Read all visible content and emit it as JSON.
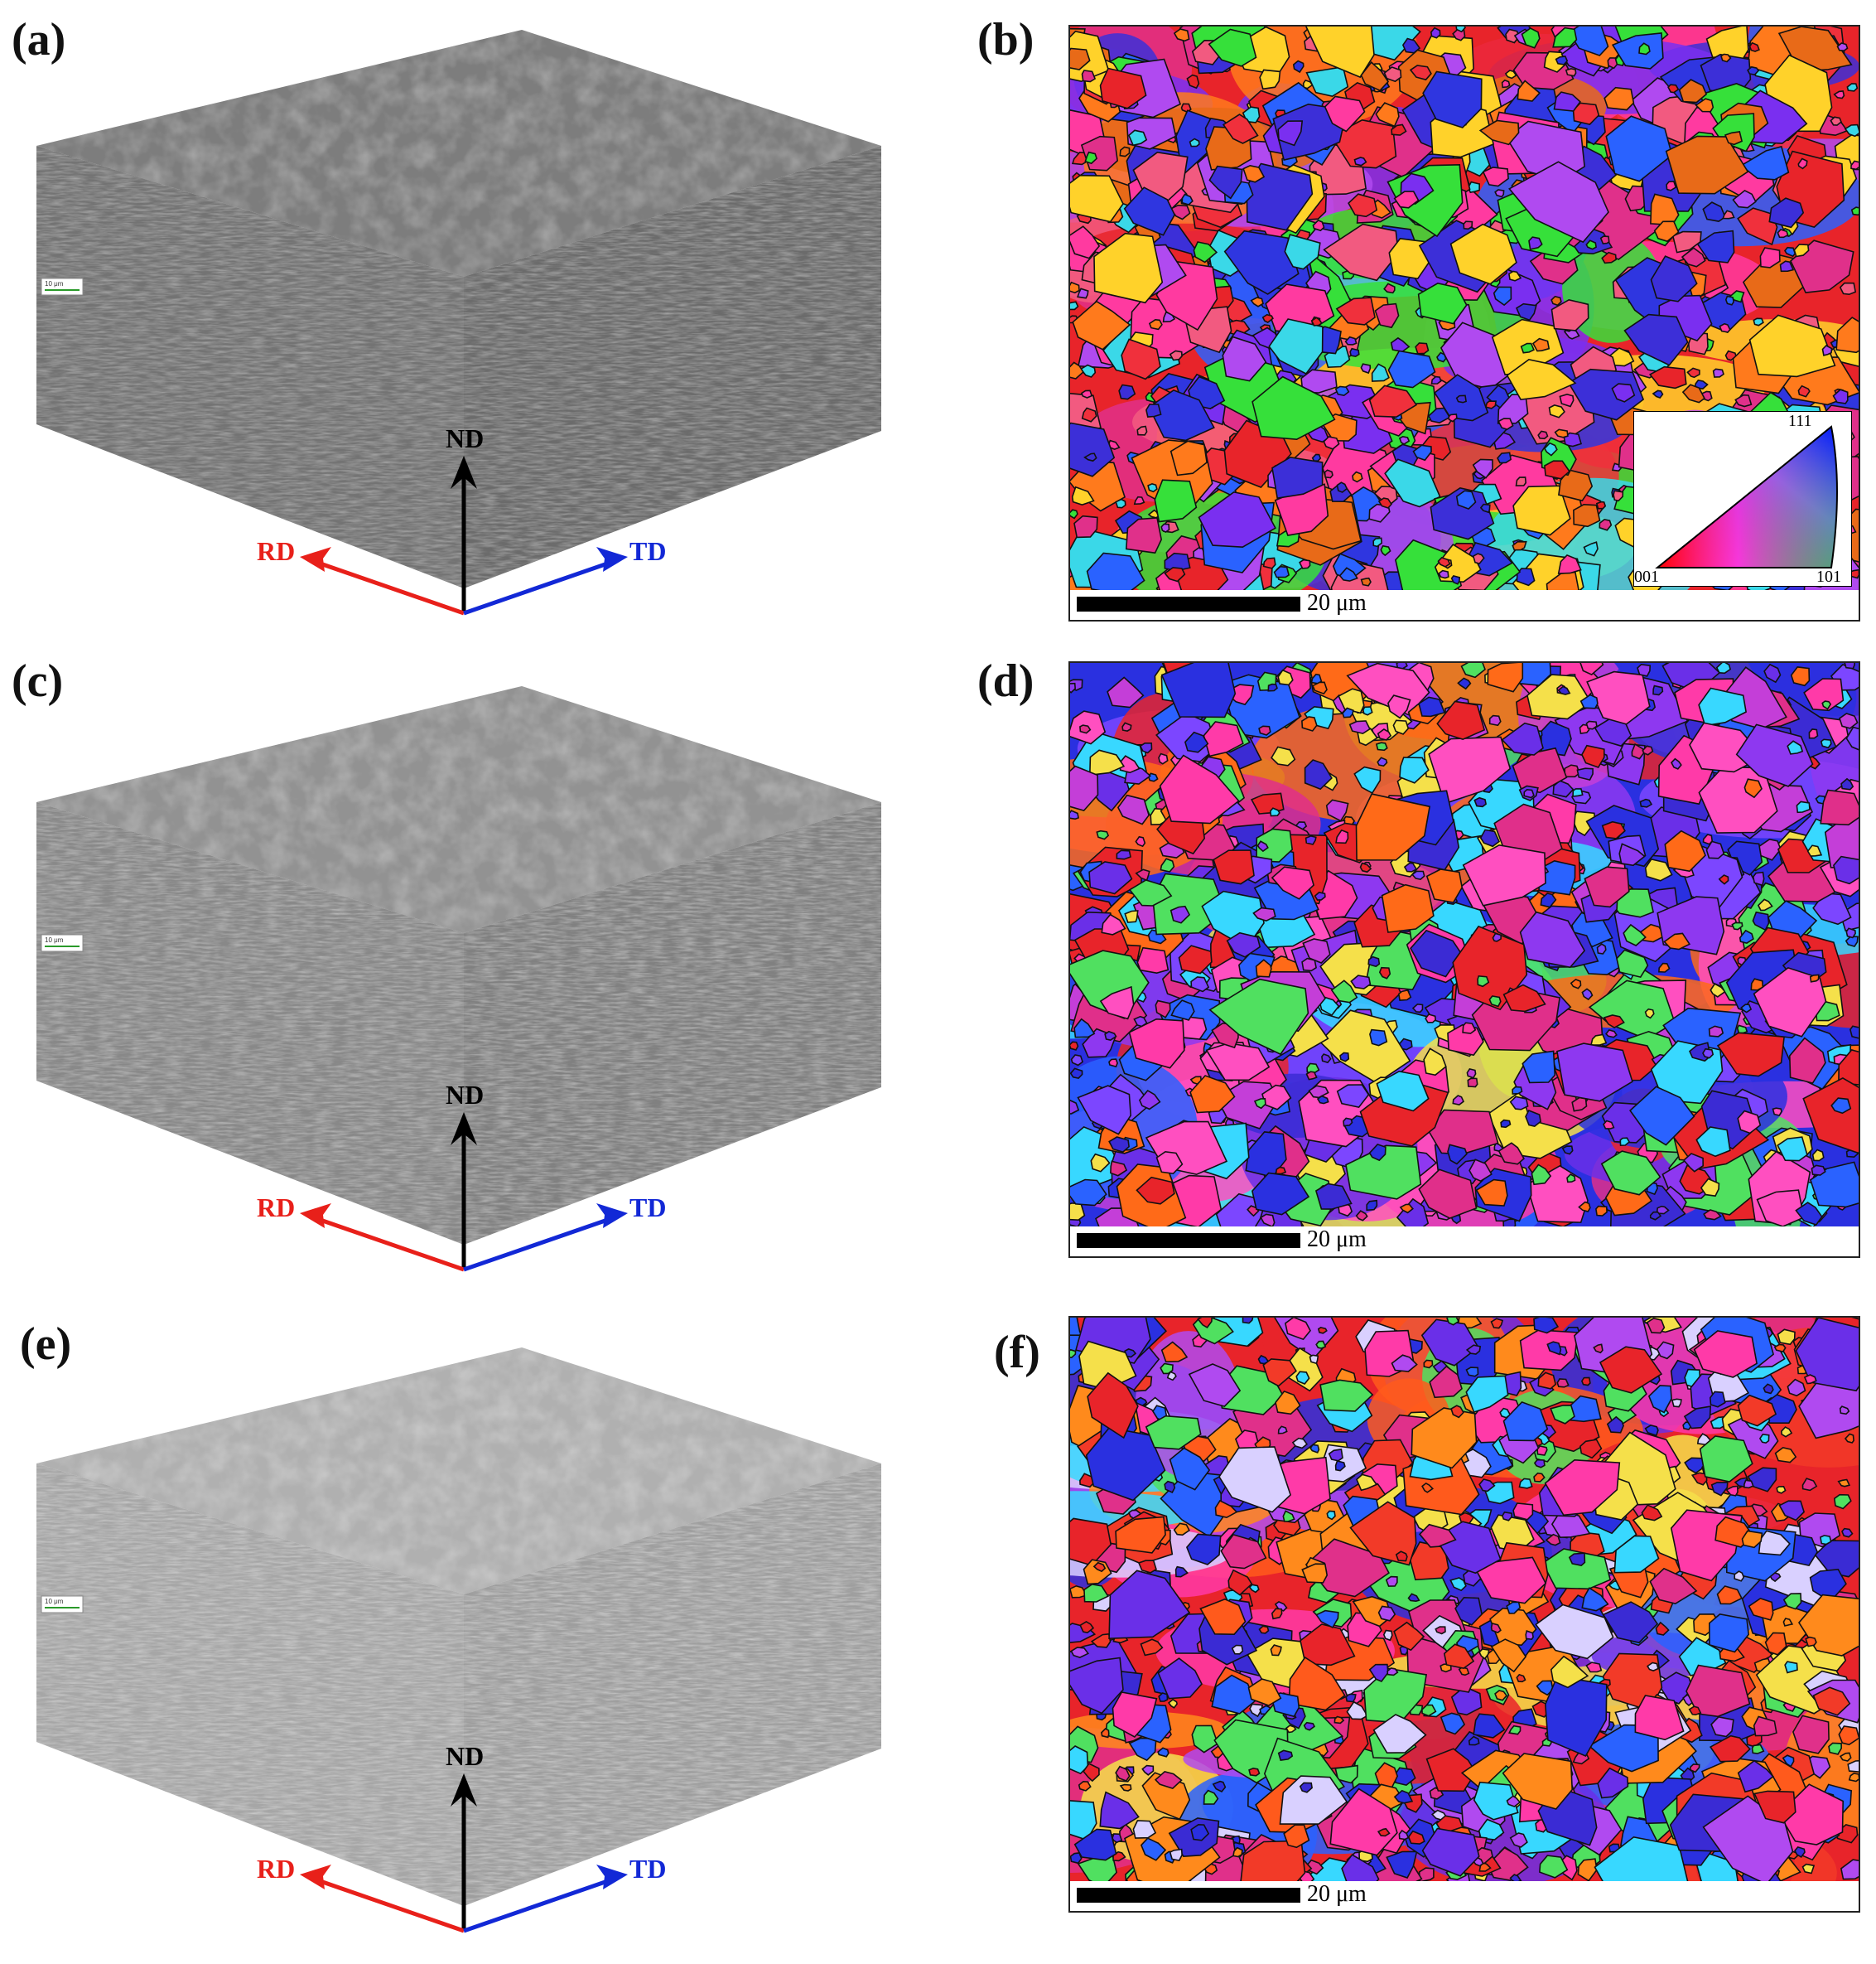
{
  "panels": {
    "a": "(a)",
    "b": "(b)",
    "c": "(c)",
    "d": "(d)",
    "e": "(e)",
    "f": "(f)"
  },
  "axes": {
    "nd": "ND",
    "rd": "RD",
    "td": "TD"
  },
  "axis_colors": {
    "nd": "#000000",
    "rd": "#e8201a",
    "td": "#1228d6"
  },
  "cube_scale_label": "10 μm",
  "ebsd_scale_label": "20 μm",
  "ipf_key": {
    "corner_001": "001",
    "corner_101": "101",
    "corner_111": "111"
  },
  "ebsd_palettes": {
    "b": [
      "#e8242a",
      "#f0303c",
      "#2f36e0",
      "#3c2fd8",
      "#7a2ff0",
      "#ff3aa0",
      "#e0308a",
      "#36e03a",
      "#3ad8e8",
      "#e86a18",
      "#ff7a1c",
      "#2a62ff",
      "#b04af0",
      "#f25a80",
      "#ffd22a"
    ],
    "d": [
      "#2a30e0",
      "#3b2bd4",
      "#6a2fe8",
      "#8e38f0",
      "#e02f8a",
      "#ff3aa8",
      "#c43ed8",
      "#e8242a",
      "#ff6a18",
      "#38d8ff",
      "#50e060",
      "#2a62ff",
      "#f5e04a",
      "#7c46ff",
      "#ff4fc0"
    ],
    "f": [
      "#e8242a",
      "#f23a28",
      "#ff5a1c",
      "#2a30e0",
      "#3a2bd4",
      "#6a2fe8",
      "#e0308a",
      "#ff3aa8",
      "#b04af0",
      "#38d8ff",
      "#50e060",
      "#ff8a1c",
      "#2a62ff",
      "#d9d0ff",
      "#f5e04a"
    ]
  }
}
